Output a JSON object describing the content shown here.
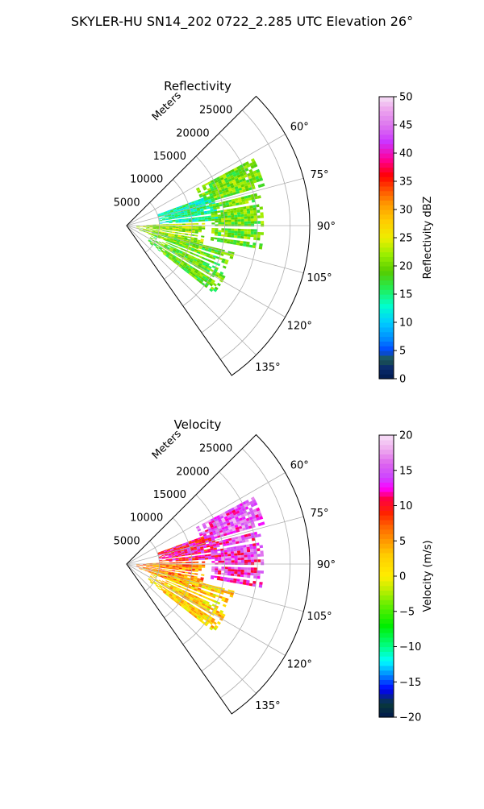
{
  "figure": {
    "suptitle": "SKYLER-HU  SN14_202  0722_2.285 UTC Elevation 26°"
  },
  "chart_data": [
    {
      "type": "heatmap",
      "subtype": "polar-sector",
      "title": "Reflectivity",
      "range_label": "Meters",
      "range_max": 28000,
      "range_ticks": [
        5000,
        10000,
        15000,
        20000,
        25000
      ],
      "theta_min_deg": 45,
      "theta_max_deg": 145,
      "theta_ticks": [
        60,
        75,
        90,
        105,
        120,
        135
      ],
      "theta_tick_labels": [
        "60°",
        "75°",
        "90°",
        "105°",
        "120°",
        "135°"
      ],
      "grid": true,
      "colorbar": {
        "label": "Reflectivity dBZ",
        "min": 0,
        "max": 50,
        "ticks": [
          0,
          5,
          10,
          15,
          20,
          25,
          30,
          35,
          40,
          45,
          50
        ],
        "tick_labels": [
          "0",
          "5",
          "10",
          "15",
          "20",
          "25",
          "30",
          "35",
          "40",
          "45",
          "50"
        ]
      },
      "echo_regions": [
        {
          "az_min": 62,
          "az_max": 74,
          "r_min": 12000,
          "r_max": 22000,
          "value": 20
        },
        {
          "az_min": 70,
          "az_max": 86,
          "r_min": 5000,
          "r_max": 14000,
          "value": 14
        },
        {
          "az_min": 76,
          "az_max": 100,
          "r_min": 13000,
          "r_max": 21000,
          "value": 20
        },
        {
          "az_min": 88,
          "az_max": 110,
          "r_min": 1500,
          "r_max": 12000,
          "value": 22
        },
        {
          "az_min": 104,
          "az_max": 128,
          "r_min": 4000,
          "r_max": 17000,
          "value": 19
        }
      ]
    },
    {
      "type": "heatmap",
      "subtype": "polar-sector",
      "title": "Velocity",
      "range_label": "Meters",
      "range_max": 28000,
      "range_ticks": [
        5000,
        10000,
        15000,
        20000,
        25000
      ],
      "theta_min_deg": 45,
      "theta_max_deg": 145,
      "theta_ticks": [
        60,
        75,
        90,
        105,
        120,
        135
      ],
      "theta_tick_labels": [
        "60°",
        "75°",
        "90°",
        "105°",
        "120°",
        "135°"
      ],
      "grid": true,
      "colorbar": {
        "label": "Velocity (m/s)",
        "min": -20,
        "max": 20,
        "ticks": [
          -20,
          -15,
          -10,
          -5,
          0,
          5,
          10,
          15,
          20
        ],
        "tick_labels": [
          "−20",
          "−15",
          "−10",
          "−5",
          "0",
          "5",
          "10",
          "15",
          "20"
        ]
      },
      "echo_regions": [
        {
          "az_min": 62,
          "az_max": 74,
          "r_min": 12000,
          "r_max": 22000,
          "value": 15
        },
        {
          "az_min": 70,
          "az_max": 86,
          "r_min": 5000,
          "r_max": 14000,
          "value": 11
        },
        {
          "az_min": 76,
          "az_max": 100,
          "r_min": 13000,
          "r_max": 21000,
          "value": 14
        },
        {
          "az_min": 88,
          "az_max": 110,
          "r_min": 1500,
          "r_max": 12000,
          "value": 6
        },
        {
          "az_min": 104,
          "az_max": 128,
          "r_min": 4000,
          "r_max": 17000,
          "value": 2
        }
      ]
    }
  ]
}
